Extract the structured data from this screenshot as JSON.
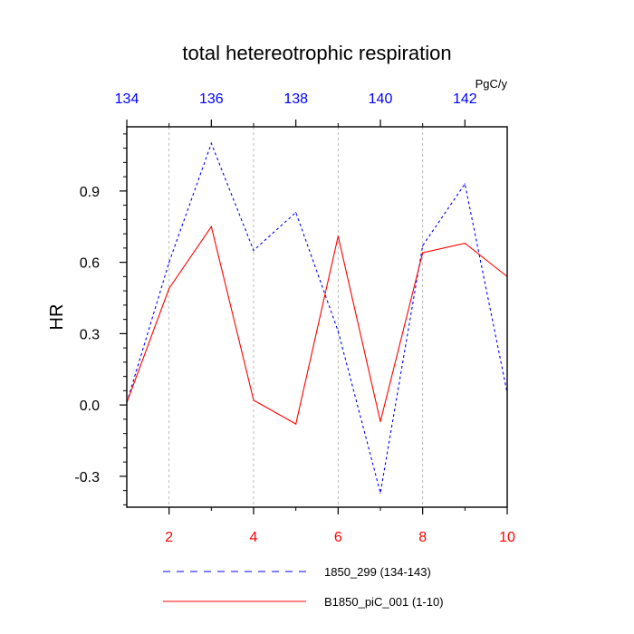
{
  "chart_data": {
    "type": "line",
    "title": "total hetereotrophic respiration",
    "units": "PgC/y",
    "ylabel": "HR",
    "xlabel": "",
    "xlim": [
      1,
      10
    ],
    "ylim": [
      -0.43,
      1.17
    ],
    "bottom_ticks": [
      "2",
      "4",
      "6",
      "8",
      "10"
    ],
    "bottom_tick_values": [
      2,
      4,
      6,
      8,
      10
    ],
    "top_ticks": [
      "134",
      "136",
      "138",
      "140",
      "142"
    ],
    "top_tick_values": [
      1,
      3,
      5,
      7,
      9
    ],
    "y_ticks": [
      "-0.3",
      "0.0",
      "0.3",
      "0.6",
      "0.9"
    ],
    "y_tick_values": [
      -0.3,
      0.0,
      0.3,
      0.6,
      0.9
    ],
    "grid": "vertical dashed at bottom ticks",
    "series": [
      {
        "name": "1850_299 (134-143)",
        "color": "#0000ff",
        "dash": "dashed",
        "x": [
          1,
          2,
          3,
          4,
          5,
          6,
          7,
          8,
          9,
          10
        ],
        "values": [
          0.01,
          0.6,
          1.1,
          0.65,
          0.81,
          0.31,
          -0.37,
          0.67,
          0.93,
          0.05
        ]
      },
      {
        "name": "B1850_piC_001 (1-10)",
        "color": "#ff0000",
        "dash": "solid",
        "x": [
          1,
          2,
          3,
          4,
          5,
          6,
          7,
          8,
          9,
          10
        ],
        "values": [
          0.01,
          0.49,
          0.75,
          0.02,
          -0.08,
          0.71,
          -0.07,
          0.64,
          0.68,
          0.54
        ]
      }
    ],
    "colors": {
      "bottom_axis": "#ff0000",
      "top_axis": "#0000ff",
      "grid": "#aaaaaa",
      "frame": "#000000"
    }
  }
}
